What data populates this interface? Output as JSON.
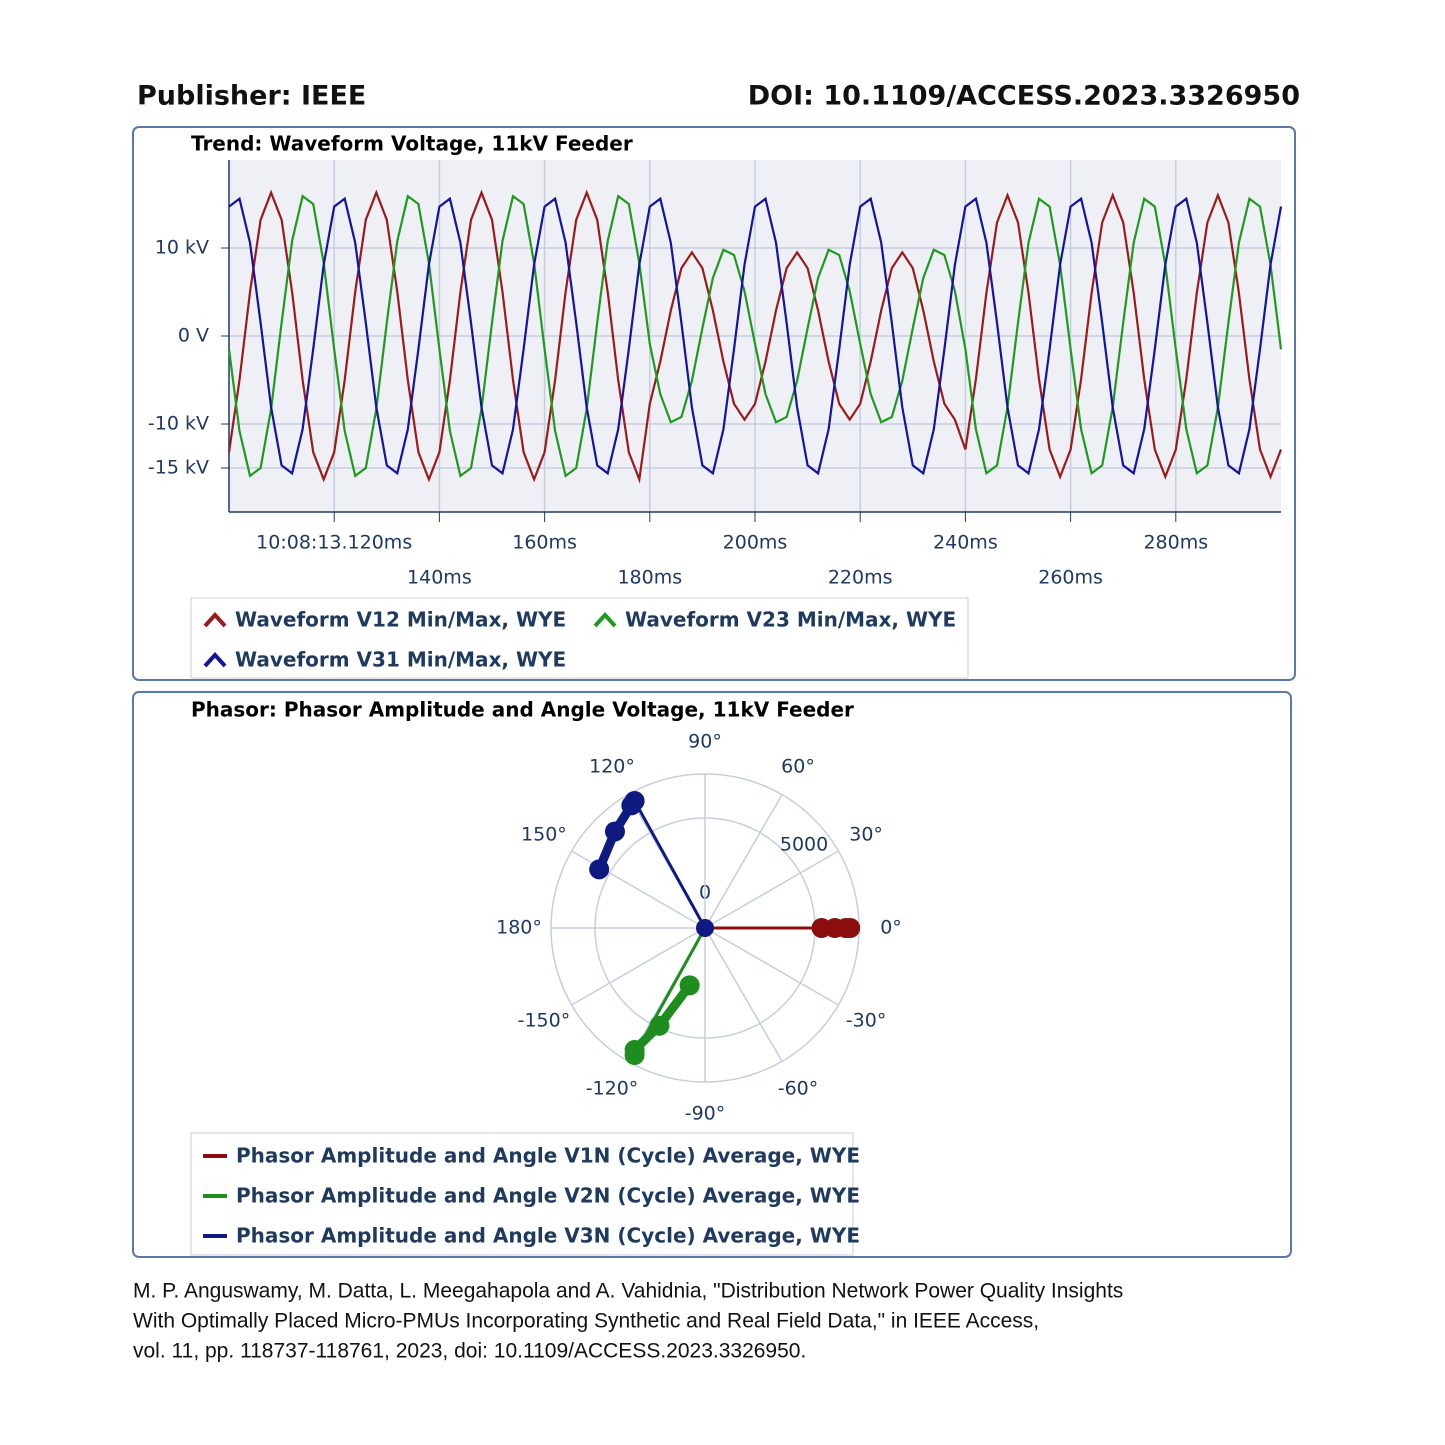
{
  "header": {
    "publisher": "Publisher: IEEE",
    "doi": "DOI: 10.1109/ACCESS.2023.3326950"
  },
  "chart_data": [
    {
      "type": "line",
      "title": "Trend: Waveform Voltage, 11kV Feeder",
      "x": [
        100,
        102,
        104,
        106,
        108,
        110,
        112,
        114,
        116,
        118,
        120,
        122,
        124,
        126,
        128,
        130,
        132,
        134,
        136,
        138,
        140,
        142,
        144,
        146,
        148,
        150,
        152,
        154,
        156,
        158,
        160,
        162,
        164,
        166,
        168,
        170,
        172,
        174,
        176,
        178,
        180,
        182,
        184,
        186,
        188,
        190,
        192,
        194,
        196,
        198,
        200,
        202,
        204,
        206,
        208,
        210,
        212,
        214,
        216,
        218,
        220,
        222,
        224,
        226,
        228,
        230,
        232,
        234,
        236,
        238,
        240,
        242,
        244,
        246,
        248,
        250,
        252,
        254,
        256,
        258,
        260,
        262,
        264,
        266,
        268,
        270,
        272,
        274,
        276,
        278,
        280,
        282,
        284,
        286,
        288,
        290,
        292,
        294,
        296,
        298,
        300
      ],
      "xlim": [
        100,
        300
      ],
      "xticks": [
        {
          "value": 120,
          "label": "10:08:13.120ms"
        },
        {
          "value": 140,
          "label": "140ms"
        },
        {
          "value": 160,
          "label": "160ms"
        },
        {
          "value": 180,
          "label": "180ms"
        },
        {
          "value": 200,
          "label": "200ms"
        },
        {
          "value": 220,
          "label": "220ms"
        },
        {
          "value": 240,
          "label": "240ms"
        },
        {
          "value": 260,
          "label": "260ms"
        },
        {
          "value": 280,
          "label": "280ms"
        }
      ],
      "ylim": [
        -20000,
        20000
      ],
      "yticks": [
        {
          "value": 10000,
          "label": "10 kV"
        },
        {
          "value": 0,
          "label": "0 V"
        },
        {
          "value": -10000,
          "label": "-10 kV"
        },
        {
          "value": -15000,
          "label": "-15 kV"
        }
      ],
      "grid": true,
      "series": [
        {
          "name": "Waveform V12 Min/Max, WYE",
          "color": "#9b1b1b",
          "values": [
            -13200,
            -5000,
            5000,
            13200,
            16300,
            13200,
            5000,
            -5000,
            -13200,
            -16300,
            -13200,
            -5000,
            5000,
            13200,
            16300,
            13200,
            5000,
            -5000,
            -13200,
            -16300,
            -13200,
            -5000,
            5000,
            13200,
            16300,
            13200,
            5000,
            -5000,
            -13200,
            -16300,
            -13200,
            -5000,
            5000,
            13200,
            16300,
            13200,
            5000,
            -5000,
            -13200,
            -16300,
            -7700,
            -2900,
            2900,
            7700,
            9500,
            7700,
            2900,
            -2900,
            -7700,
            -9500,
            -7700,
            -2900,
            2900,
            7700,
            9500,
            7700,
            2900,
            -2900,
            -7700,
            -9500,
            -7700,
            -2900,
            2900,
            7700,
            9500,
            7700,
            2900,
            -2900,
            -7700,
            -9500,
            -12900,
            -4900,
            4900,
            12900,
            16000,
            12900,
            4900,
            -4900,
            -12900,
            -16000,
            -12900,
            -4900,
            4900,
            12900,
            16000,
            12900,
            4900,
            -4900,
            -12900,
            -16000,
            -12900,
            -4900,
            4900,
            12900,
            16000,
            12900,
            4900,
            -4900,
            -12900,
            -16000,
            -12900
          ]
        },
        {
          "name": "Waveform V23 Min/Max, WYE",
          "color": "#1f9a1f",
          "values": [
            -1500,
            -10800,
            -15900,
            -15000,
            -8300,
            1500,
            10800,
            15900,
            15000,
            8300,
            -1500,
            -10800,
            -15900,
            -15000,
            -8300,
            1500,
            10800,
            15900,
            15000,
            8300,
            -1500,
            -10800,
            -15900,
            -15000,
            -8300,
            1500,
            10800,
            15900,
            15000,
            8300,
            -1500,
            -10800,
            -15900,
            -15000,
            -8300,
            1500,
            10800,
            15900,
            15000,
            8300,
            -900,
            -6600,
            -9800,
            -9200,
            -5100,
            900,
            6600,
            9800,
            9200,
            5100,
            -900,
            -6600,
            -9800,
            -9200,
            -5100,
            900,
            6600,
            9800,
            9200,
            5100,
            -900,
            -6600,
            -9800,
            -9200,
            -5100,
            900,
            6600,
            9800,
            9200,
            5100,
            -1500,
            -10600,
            -15600,
            -14700,
            -8100,
            1500,
            10600,
            15600,
            14700,
            8100,
            -1500,
            -10600,
            -15600,
            -14700,
            -8100,
            1500,
            10600,
            15600,
            14700,
            8100,
            -1500,
            -10600,
            -15600,
            -14700,
            -8100,
            1500,
            10600,
            15600,
            14700,
            8100,
            -1500
          ]
        },
        {
          "name": "Waveform V31 Min/Max, WYE",
          "color": "#14149c",
          "values": [
            14700,
            15600,
            10600,
            1500,
            -8100,
            -14700,
            -15600,
            -10600,
            -1500,
            8100,
            14700,
            15600,
            10600,
            1500,
            -8100,
            -14700,
            -15600,
            -10600,
            -1500,
            8100,
            14700,
            15600,
            10600,
            1500,
            -8100,
            -14700,
            -15600,
            -10600,
            -1500,
            8100,
            14700,
            15600,
            10600,
            1500,
            -8100,
            -14700,
            -15600,
            -10600,
            -1500,
            8100,
            14700,
            15600,
            10600,
            1500,
            -8100,
            -14700,
            -15600,
            -10600,
            -1500,
            8100,
            14700,
            15600,
            10600,
            1500,
            -8100,
            -14700,
            -15600,
            -10600,
            -1500,
            8100,
            14700,
            15600,
            10600,
            1500,
            -8100,
            -14700,
            -15600,
            -10600,
            -1500,
            8100,
            14700,
            15600,
            10600,
            1500,
            -8100,
            -14700,
            -15600,
            -10600,
            -1500,
            8100,
            14700,
            15600,
            10600,
            1500,
            -8100,
            -14700,
            -15600,
            -10600,
            -1500,
            8100,
            14700,
            15600,
            10600,
            1500,
            -8100,
            -14700,
            -15600,
            -10600,
            -1500,
            8100,
            14700
          ]
        }
      ]
    },
    {
      "type": "polar",
      "title": "Phasor: Phasor Amplitude and Angle Voltage, 11kV Feeder",
      "rlim": [
        0,
        7000
      ],
      "rticks": [
        0,
        5000
      ],
      "angleticks": [
        {
          "value": 90,
          "label": "90°"
        },
        {
          "value": 60,
          "label": "60°"
        },
        {
          "value": 30,
          "label": "30°"
        },
        {
          "value": 0,
          "label": "0°"
        },
        {
          "value": -30,
          "label": "-30°"
        },
        {
          "value": -60,
          "label": "-60°"
        },
        {
          "value": -90,
          "label": "-90°"
        },
        {
          "value": -120,
          "label": "-120°"
        },
        {
          "value": -150,
          "label": "-150°"
        },
        {
          "value": 180,
          "label": "180°"
        },
        {
          "value": 150,
          "label": "150°"
        },
        {
          "value": 120,
          "label": "120°"
        }
      ],
      "series": [
        {
          "name": "Phasor Amplitude and Angle V1N (Cycle) Average, WYE",
          "color": "#8b0d0d",
          "amplitude": [
            6600,
            6400,
            5900,
            5300
          ],
          "angle": [
            0,
            0,
            0,
            0
          ]
        },
        {
          "name": "Phasor Amplitude and Angle V2N (Cycle) Average, WYE",
          "color": "#1e8c1e",
          "amplitude": [
            6600,
            6400,
            4900,
            2700
          ],
          "angle": [
            -119,
            -120,
            -115,
            -105
          ]
        },
        {
          "name": "Phasor Amplitude and Angle V3N (Cycle) Average, WYE",
          "color": "#0f1a80",
          "amplitude": [
            6600,
            6500,
            6000,
            5500
          ],
          "angle": [
            119,
            121,
            133,
            151
          ]
        }
      ]
    }
  ],
  "citation": {
    "lines": [
      "M. P. Anguswamy, M. Datta, L. Meegahapola and A. Vahidnia, \"Distribution Network Power Quality Insights",
      "With Optimally Placed Micro-PMUs Incorporating Synthetic and Real Field Data,\" in IEEE Access,",
      "vol. 11, pp. 118737-118761, 2023, doi: 10.1109/ACCESS.2023.3326950."
    ]
  }
}
